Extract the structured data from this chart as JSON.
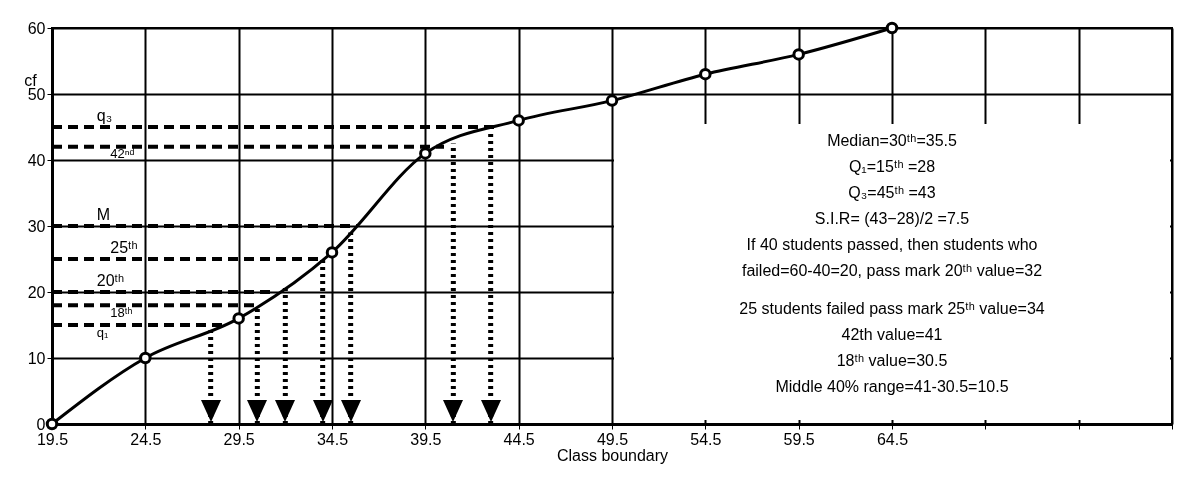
{
  "chart_data": {
    "type": "line",
    "xlabel": "Class boundary",
    "ylabel": "cf",
    "x": [
      19.5,
      24.5,
      29.5,
      34.5,
      39.5,
      44.5,
      49.5,
      54.5,
      59.5,
      64.5
    ],
    "series": [
      {
        "color": "#000000",
        "values": [
          0,
          10,
          16,
          26,
          41,
          46,
          49,
          53,
          56,
          60
        ]
      }
    ],
    "marker": "circle",
    "grid": true,
    "xlim": [
      19.5,
      79.5
    ],
    "xticks": [
      19.5,
      24.5,
      29.5,
      34.5,
      39.5,
      44.5,
      49.5,
      54.5,
      59.5,
      64.5,
      {
        "value": 69.5,
        "label": null
      },
      {
        "value": 74.5,
        "label": null
      },
      {
        "value": 79.5,
        "label": null
      }
    ],
    "ylim": [
      0,
      60
    ],
    "yticks": [
      0,
      10,
      20,
      30,
      40,
      50,
      60
    ],
    "ref_lines": [
      {
        "axis": "y",
        "value": 45,
        "label": "q₃",
        "line_style": "dashed"
      },
      {
        "axis": "y",
        "value": 42,
        "label": "42ⁿᵈ",
        "line_style": "dashed"
      },
      {
        "axis": "y",
        "value": 30,
        "label": "M",
        "line_style": "dashed"
      },
      {
        "axis": "y",
        "value": 25,
        "label": "25ᵗʰ",
        "line_style": "dashed"
      },
      {
        "axis": "y",
        "value": 20,
        "label": "20ᵗʰ",
        "line_style": "dashed"
      },
      {
        "axis": "y",
        "value": 18,
        "label": "18ᵗʰ",
        "line_style": "dashed"
      },
      {
        "axis": "y",
        "value": 15,
        "label": "q₁",
        "line_style": "dashed"
      },
      {
        "axis": "x",
        "value": 28,
        "line_style": "dotted"
      },
      {
        "axis": "x",
        "value": 30.5,
        "line_style": "dotted"
      },
      {
        "axis": "x",
        "value": 32,
        "line_style": "dotted"
      },
      {
        "axis": "x",
        "value": 34,
        "line_style": "dotted"
      },
      {
        "axis": "x",
        "value": 35.5,
        "line_style": "dotted"
      },
      {
        "axis": "x",
        "value": 41,
        "line_style": "dotted"
      },
      {
        "axis": "x",
        "value": 43,
        "line_style": "dotted"
      }
    ],
    "annotations": [
      "Median=30ᵗʰ=35.5",
      "Q₁=15ᵗʰ =28",
      "Q₃=45ᵗʰ =43",
      "S.I.R= (43−28)/2 =7.5",
      "If 40 students passed, then students who",
      "failed=60-40=20, pass mark 20ᵗʰ value=32",
      "25 students failed pass mark 25ᵗʰ value=34",
      "42th value=41",
      "18ᵗʰ value=30.5",
      "Middle 40% range=41-30.5=10.5"
    ]
  }
}
